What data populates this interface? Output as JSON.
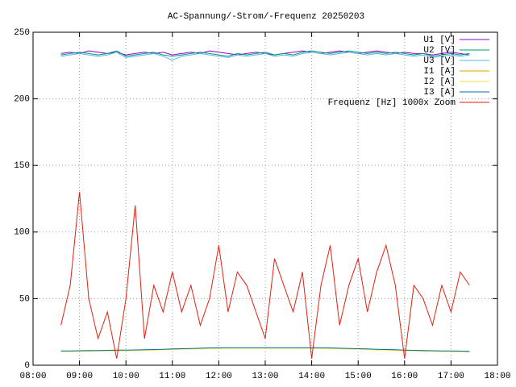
{
  "chart_data": {
    "type": "line",
    "title": "AC-Spannung/-Strom/-Frequenz 20250203",
    "x": [
      8.6,
      8.8,
      9.0,
      9.2,
      9.4,
      9.6,
      9.8,
      10.0,
      10.2,
      10.4,
      10.6,
      10.8,
      11.0,
      11.2,
      11.4,
      11.6,
      11.8,
      12.0,
      12.2,
      12.4,
      12.6,
      12.8,
      13.0,
      13.2,
      13.4,
      13.6,
      13.8,
      14.0,
      14.2,
      14.4,
      14.6,
      14.8,
      15.0,
      15.2,
      15.4,
      15.6,
      15.8,
      16.0,
      16.2,
      16.4,
      16.6,
      16.8,
      17.0,
      17.2,
      17.4
    ],
    "series": [
      {
        "name": "U1 [V]",
        "color": "#9400d3",
        "values": [
          234,
          235,
          234,
          236,
          235,
          234,
          235,
          233,
          234,
          235,
          234,
          235,
          233,
          234,
          235,
          234,
          236,
          235,
          234,
          233,
          234,
          235,
          234,
          233,
          234,
          235,
          236,
          235,
          234,
          235,
          236,
          235,
          234,
          235,
          236,
          235,
          234,
          235,
          234,
          234,
          233,
          234,
          235,
          234,
          233
        ]
      },
      {
        "name": "U2 [V]",
        "color": "#009e73",
        "values": [
          233,
          234,
          235,
          234,
          233,
          234,
          236,
          232,
          233,
          234,
          235,
          233,
          232,
          233,
          234,
          235,
          234,
          233,
          232,
          234,
          233,
          234,
          235,
          233,
          234,
          233,
          235,
          236,
          235,
          234,
          235,
          236,
          235,
          234,
          235,
          234,
          235,
          234,
          233,
          234,
          232,
          233,
          234,
          233,
          234
        ]
      },
      {
        "name": "U3 [V]",
        "color": "#56b4e9",
        "values": [
          232,
          233,
          234,
          233,
          232,
          233,
          235,
          231,
          232,
          233,
          234,
          232,
          229,
          232,
          233,
          234,
          233,
          232,
          231,
          233,
          232,
          233,
          234,
          232,
          233,
          232,
          234,
          235,
          234,
          233,
          234,
          235,
          234,
          233,
          234,
          233,
          234,
          233,
          232,
          233,
          231,
          232,
          233,
          232,
          233
        ]
      },
      {
        "name": "I1 [A]",
        "color": "#e69f00",
        "values": [
          10.5,
          10.6,
          10.7,
          10.8,
          10.9,
          11,
          11.1,
          11.2,
          11.3,
          11.5,
          11.6,
          11.8,
          12,
          12.2,
          12.4,
          12.6,
          12.8,
          12.9,
          13,
          13,
          13,
          13,
          13,
          13,
          13,
          13,
          13,
          13,
          12.9,
          12.8,
          12.6,
          12.4,
          12.2,
          12,
          11.8,
          11.6,
          11.4,
          11.2,
          11,
          10.8,
          10.7,
          10.6,
          10.5,
          10.4,
          10.3
        ]
      },
      {
        "name": "I2 [A]",
        "color": "#f0e442",
        "values": [
          10.2,
          10.3,
          10.4,
          10.5,
          10.6,
          10.7,
          10.8,
          10.9,
          11,
          11.2,
          11.3,
          11.5,
          11.7,
          11.9,
          12.1,
          12.3,
          12.5,
          12.6,
          12.7,
          12.7,
          12.7,
          12.7,
          12.7,
          12.7,
          12.7,
          12.7,
          12.7,
          12.7,
          12.6,
          12.5,
          12.3,
          12.1,
          11.9,
          11.7,
          11.5,
          11.3,
          11.1,
          10.9,
          10.7,
          10.5,
          10.4,
          10.3,
          10.2,
          10.1,
          10
        ]
      },
      {
        "name": "I3 [A]",
        "color": "#0072b2",
        "values": [
          10.7,
          10.8,
          10.9,
          11,
          11.1,
          11.2,
          11.3,
          11.4,
          11.5,
          11.7,
          11.8,
          12,
          12.2,
          12.4,
          12.6,
          12.8,
          13,
          13.1,
          13.2,
          13.2,
          13.2,
          13.2,
          13.2,
          13.2,
          13.2,
          13.2,
          13.2,
          13.2,
          13.1,
          13,
          12.8,
          12.6,
          12.4,
          12.2,
          12,
          11.8,
          11.6,
          11.4,
          11.2,
          11,
          10.9,
          10.8,
          10.7,
          10.6,
          10.5
        ]
      },
      {
        "name": "Frequenz [Hz] 1000x Zoom",
        "color": "#e51e10",
        "values": [
          30,
          60,
          130,
          50,
          20,
          40,
          5,
          50,
          120,
          20,
          60,
          40,
          70,
          40,
          60,
          30,
          50,
          90,
          40,
          70,
          60,
          40,
          20,
          80,
          60,
          40,
          70,
          5,
          60,
          90,
          30,
          60,
          80,
          40,
          70,
          90,
          60,
          5,
          60,
          50,
          30,
          60,
          40,
          70,
          60
        ]
      }
    ],
    "xlim": [
      8,
      18
    ],
    "xticks": [
      {
        "value": 8,
        "label": "08:00"
      },
      {
        "value": 9,
        "label": "09:00"
      },
      {
        "value": 10,
        "label": "10:00"
      },
      {
        "value": 11,
        "label": "11:00"
      },
      {
        "value": 12,
        "label": "12:00"
      },
      {
        "value": 13,
        "label": "13:00"
      },
      {
        "value": 14,
        "label": "14:00"
      },
      {
        "value": 15,
        "label": "15:00"
      },
      {
        "value": 16,
        "label": "16:00"
      },
      {
        "value": 17,
        "label": "17:00"
      },
      {
        "value": 18,
        "label": "18:00"
      }
    ],
    "ylim": [
      0,
      250
    ],
    "yticks": [
      0,
      50,
      100,
      150,
      200,
      250
    ],
    "grid": true,
    "legend": "top-right"
  }
}
